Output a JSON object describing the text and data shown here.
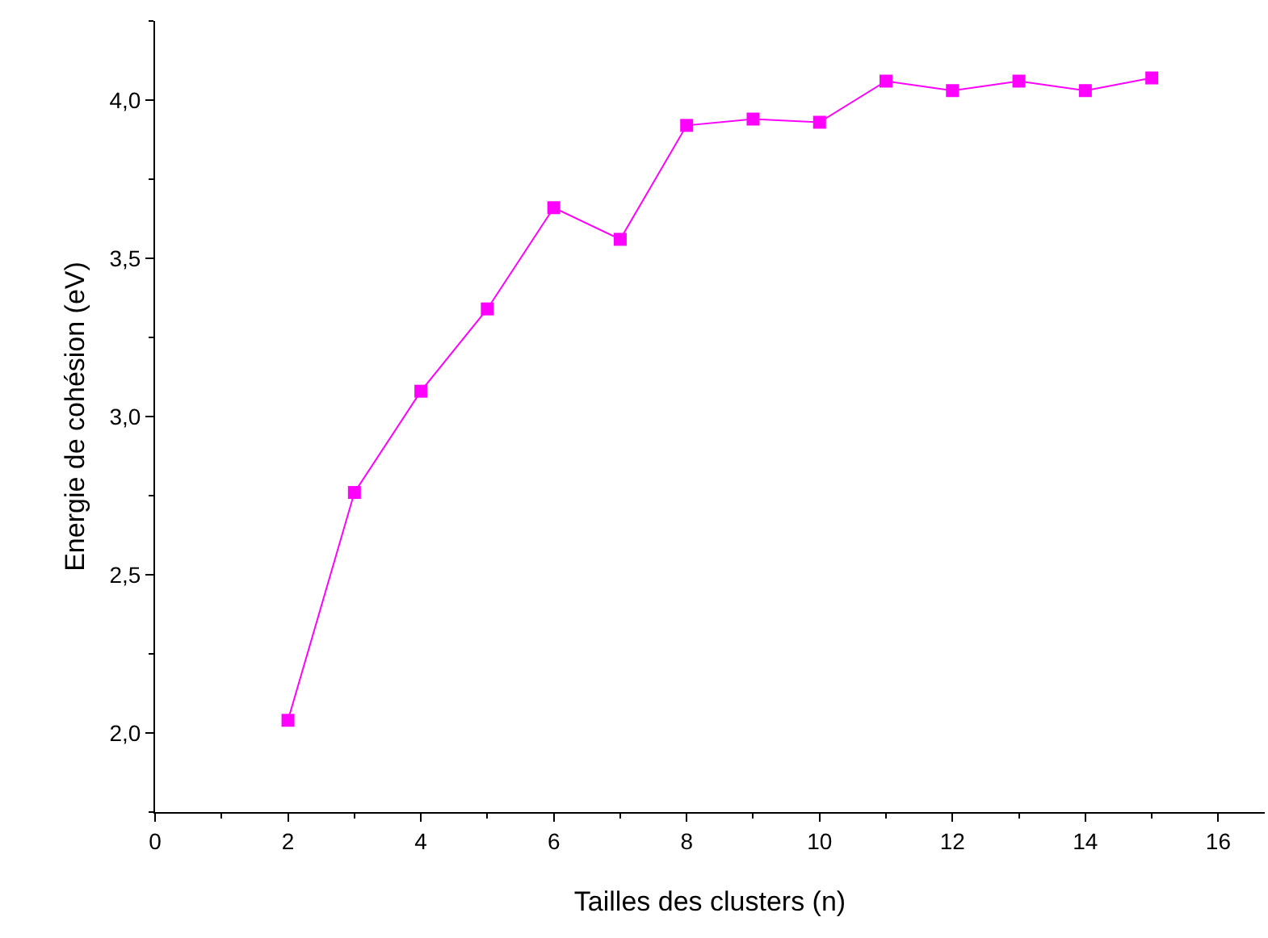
{
  "chart_data": {
    "type": "line",
    "xlabel": "Tailles des clusters (n)",
    "ylabel": "Energie de cohésion (eV)",
    "x": [
      2,
      3,
      4,
      5,
      6,
      7,
      8,
      9,
      10,
      11,
      12,
      13,
      14,
      15
    ],
    "series": [
      {
        "color": "#ff00ff",
        "values": [
          2.04,
          2.76,
          3.08,
          3.34,
          3.66,
          3.56,
          3.92,
          3.94,
          3.93,
          4.06,
          4.03,
          4.06,
          4.03,
          4.07
        ]
      }
    ],
    "marker": "square",
    "line_style": "solid",
    "grid": false,
    "legend": false,
    "xlim": [
      0,
      16.7
    ],
    "xticks": [
      0,
      2,
      4,
      6,
      8,
      10,
      12,
      14,
      16
    ],
    "ylim": [
      1.75,
      4.25
    ],
    "yticks": [
      {
        "value": 2,
        "label": "2,0"
      },
      {
        "value": 2.5,
        "label": "2,5"
      },
      {
        "value": 3,
        "label": "3,0"
      },
      {
        "value": 3.5,
        "label": "3,5"
      },
      {
        "value": 4,
        "label": "4,0"
      }
    ]
  }
}
